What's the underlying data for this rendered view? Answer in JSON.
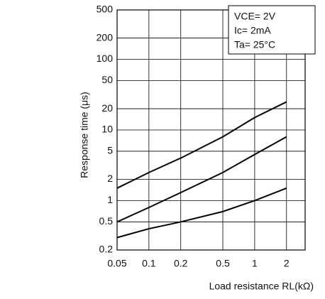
{
  "chart_data": {
    "type": "line",
    "xlabel": "Load resistance RL(kΩ)",
    "ylabel": "Response time (μs)",
    "annotations": [
      "VCE= 2V",
      "Ic= 2mA",
      "Ta= 25°C"
    ],
    "x": [
      0.05,
      0.1,
      0.2,
      0.5,
      1,
      2
    ],
    "series": [
      {
        "color": "#000000",
        "values": [
          1.5,
          2.5,
          4,
          8,
          15,
          25
        ]
      },
      {
        "color": "#000000",
        "values": [
          0.5,
          0.8,
          1.3,
          2.5,
          4.5,
          8
        ]
      },
      {
        "color": "#000000",
        "values": [
          0.3,
          0.4,
          0.5,
          0.7,
          1,
          1.5
        ]
      }
    ],
    "xlim": [
      0.05,
      3
    ],
    "ylim": [
      0.2,
      500
    ],
    "xticks": [
      0.05,
      0.1,
      0.2,
      0.5,
      1,
      2
    ],
    "yticks": [
      0.2,
      0.5,
      1,
      2,
      5,
      10,
      20,
      50,
      100,
      200,
      500
    ],
    "xlog": true,
    "ylog": true,
    "grid": true
  }
}
